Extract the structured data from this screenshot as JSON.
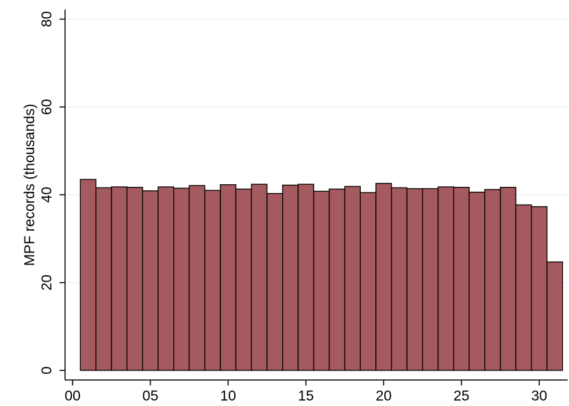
{
  "chart_data": {
    "type": "bar",
    "x": [
      1,
      2,
      3,
      4,
      5,
      6,
      7,
      8,
      9,
      10,
      11,
      12,
      13,
      14,
      15,
      16,
      17,
      18,
      19,
      20,
      21,
      22,
      23,
      24,
      25,
      26,
      27,
      28,
      29,
      30,
      31
    ],
    "values": [
      43.5,
      41.6,
      41.8,
      41.7,
      40.9,
      41.8,
      41.5,
      42.1,
      41.0,
      42.3,
      41.3,
      42.4,
      40.3,
      42.2,
      42.4,
      40.8,
      41.3,
      41.9,
      40.5,
      42.6,
      41.6,
      41.4,
      41.4,
      41.8,
      41.7,
      40.6,
      41.2,
      41.7,
      37.7,
      37.3,
      24.7
    ],
    "xlabel": "",
    "ylabel": "MPF records (thousands)",
    "xlim": [
      0.5,
      31.5
    ],
    "ylim": [
      0,
      80
    ],
    "xticks": [
      0,
      5,
      10,
      15,
      20,
      25,
      30
    ],
    "xtick_labels": [
      "00",
      "05",
      "10",
      "15",
      "20",
      "25",
      "30"
    ],
    "yticks": [
      0,
      20,
      40,
      60,
      80
    ],
    "ytick_labels": [
      "0",
      "20",
      "40",
      "60",
      "80"
    ],
    "grid": true,
    "colors": {
      "bar_fill": "#a45a5f",
      "bar_edge": "#000000",
      "grid": "#eaf0f3"
    }
  }
}
